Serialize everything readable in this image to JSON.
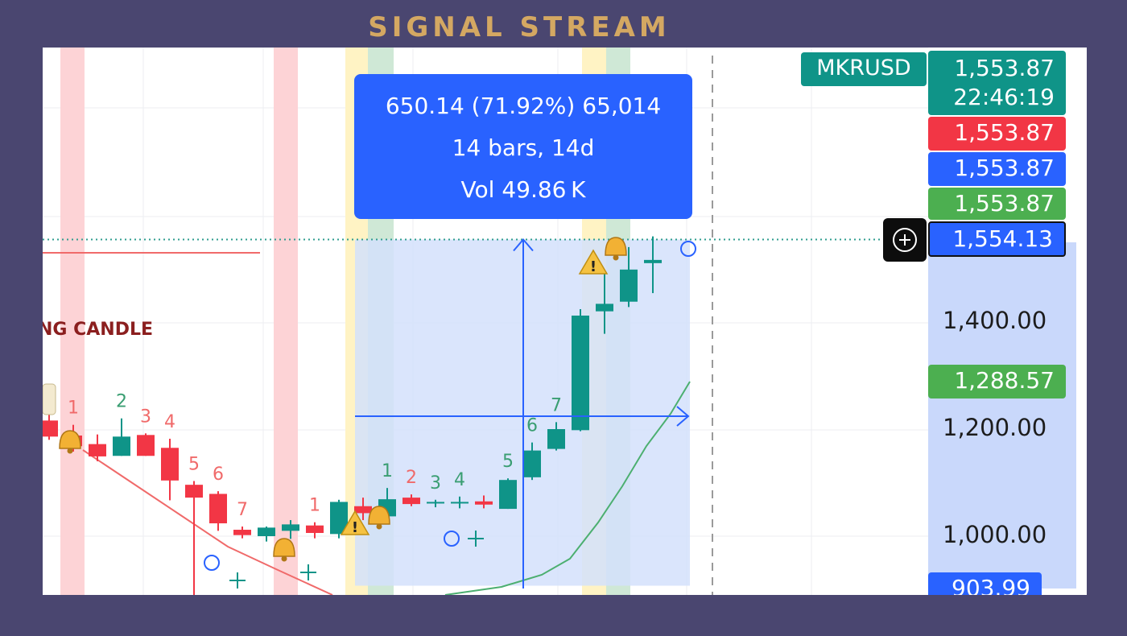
{
  "brand": "SIGNAL STREAM",
  "symbol": "MKRUSD",
  "price_tags": {
    "last_price": "1,553.87",
    "countdown": "22:46:19",
    "red": "1,553.87",
    "blue": "1,553.87",
    "green": "1,553.87",
    "crosshair": "1,554.13",
    "green_low": "1,288.57",
    "bottom": "903.99"
  },
  "measure": {
    "change": "650.14 (71.92%) 65,014",
    "bars": "14 bars, 14d",
    "volume": "Vol 49.86 K"
  },
  "annotation": "NG CANDLE",
  "colors": {
    "up": "#0f9488",
    "down": "#f23645",
    "measure": "#2962ff",
    "measure_fill": "#d3e0fb",
    "band_red": "#fdd3d6",
    "band_yellow": "#fff3c4",
    "band_green": "#cfe8d6",
    "ma": "#4caf70",
    "trend": "#f06a6a"
  },
  "chart_data": {
    "type": "candlestick",
    "title": "",
    "yaxis_ticks": [
      "1,400.00",
      "1,200.00",
      "1,000.00"
    ],
    "candles": [
      {
        "o": 1216,
        "h": 1262,
        "l": 1180,
        "c": 1186,
        "label": ""
      },
      {
        "o": 1188,
        "h": 1208,
        "l": 1158,
        "c": 1168,
        "label": "1"
      },
      {
        "o": 1172,
        "h": 1190,
        "l": 1140,
        "c": 1149,
        "label": ""
      },
      {
        "o": 1150,
        "h": 1220,
        "l": 1150,
        "c": 1186,
        "label": "2"
      },
      {
        "o": 1189,
        "h": 1192,
        "l": 1150,
        "c": 1150,
        "label": "3"
      },
      {
        "o": 1165,
        "h": 1182,
        "l": 1067,
        "c": 1104,
        "label": "4"
      },
      {
        "o": 1096,
        "h": 1103,
        "l": 840,
        "c": 1072,
        "label": "5"
      },
      {
        "o": 1079,
        "h": 1084,
        "l": 1010,
        "c": 1024,
        "label": "6"
      },
      {
        "o": 1012,
        "h": 1018,
        "l": 996,
        "c": 1002,
        "label": "7"
      },
      {
        "o": 1000,
        "h": 1018,
        "l": 990,
        "c": 1016,
        "label": ""
      },
      {
        "o": 1010,
        "h": 1030,
        "l": 995,
        "c": 1022,
        "label": ""
      },
      {
        "o": 1020,
        "h": 1026,
        "l": 996,
        "c": 1006,
        "label": "1"
      },
      {
        "o": 1004,
        "h": 1068,
        "l": 996,
        "c": 1064,
        "label": ""
      },
      {
        "o": 1056,
        "h": 1072,
        "l": 1030,
        "c": 1043,
        "label": ""
      },
      {
        "o": 1037,
        "h": 1090,
        "l": 1032,
        "c": 1069,
        "label": "1"
      },
      {
        "o": 1072,
        "h": 1078,
        "l": 1056,
        "c": 1060,
        "label": "2"
      },
      {
        "o": 1063,
        "h": 1068,
        "l": 1054,
        "c": 1064,
        "label": "3"
      },
      {
        "o": 1062,
        "h": 1074,
        "l": 1052,
        "c": 1064,
        "label": "4"
      },
      {
        "o": 1065,
        "h": 1076,
        "l": 1052,
        "c": 1059,
        "label": ""
      },
      {
        "o": 1051,
        "h": 1108,
        "l": 1051,
        "c": 1105,
        "label": "5"
      },
      {
        "o": 1110,
        "h": 1175,
        "l": 1105,
        "c": 1160,
        "label": "6"
      },
      {
        "o": 1163,
        "h": 1213,
        "l": 1160,
        "c": 1200,
        "label": "7"
      },
      {
        "o": 1198,
        "h": 1424,
        "l": 1196,
        "c": 1412,
        "label": ""
      },
      {
        "o": 1420,
        "h": 1490,
        "l": 1378,
        "c": 1434,
        "label": ""
      },
      {
        "o": 1438,
        "h": 1540,
        "l": 1428,
        "c": 1498,
        "label": ""
      },
      {
        "o": 1510,
        "h": 1560,
        "l": 1454,
        "c": 1516,
        "label": ""
      }
    ],
    "measure_range": {
      "from": 903.99,
      "to": 1554.13,
      "change": 650.14,
      "percent": 71.92,
      "bars": 14
    }
  }
}
